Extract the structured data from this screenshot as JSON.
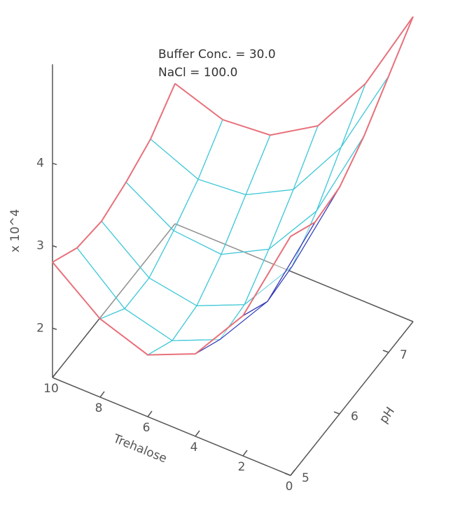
{
  "chart_data": {
    "type": "surface",
    "annotations": [
      "Buffer Conc. = 30.0",
      "NaCl = 100.0"
    ],
    "x_label": "Trehalose",
    "y_label": "pH",
    "z_label": "x 10^4",
    "x": [
      0,
      2,
      4,
      6,
      8,
      10
    ],
    "y": [
      5,
      5.5,
      6,
      6.5,
      7,
      7.5
    ],
    "z": [
      [
        4.3,
        3.1,
        2.4,
        2.15,
        2.35,
        2.8
      ],
      [
        4.1,
        2.9,
        2.2,
        1.95,
        2.1,
        2.6
      ],
      [
        4.15,
        2.95,
        2.25,
        2.0,
        2.1,
        2.55
      ],
      [
        4.4,
        3.25,
        2.55,
        2.25,
        2.3,
        2.65
      ],
      [
        4.75,
        3.65,
        2.9,
        2.6,
        2.55,
        2.8
      ],
      [
        5.1,
        4.05,
        3.3,
        2.95,
        2.9,
        3.1
      ]
    ],
    "xlim": [
      0,
      10
    ],
    "xticks": [
      0,
      2,
      4,
      6,
      8,
      10
    ],
    "ylim": [
      5,
      7.5
    ],
    "yticks": [
      5,
      6,
      7
    ],
    "zlim": [
      1.4,
      5.2
    ],
    "zticks": [
      2,
      3,
      4
    ],
    "top_color": "#3a3ab8",
    "under_color": "#40c8d8",
    "edge_color": "#e8707a"
  }
}
